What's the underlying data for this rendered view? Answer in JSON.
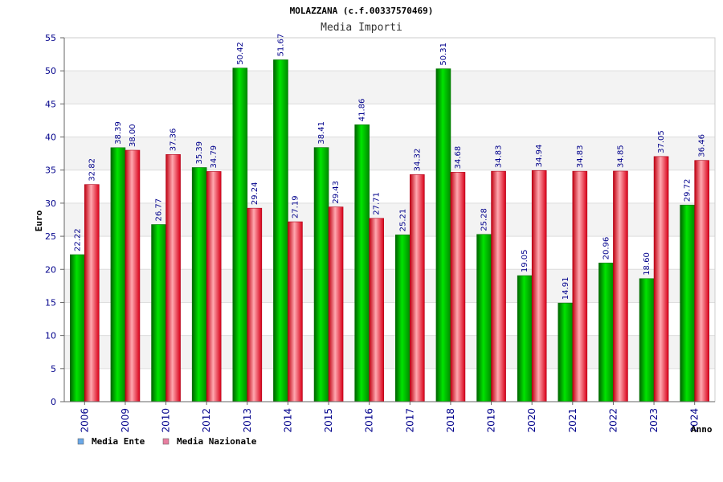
{
  "chart_data": {
    "type": "bar",
    "title": "MOLAZZANA (c.f.00337570469)",
    "subtitle": "Media Importi",
    "xlabel": "Anno",
    "ylabel": "Euro",
    "ylim": [
      0,
      55
    ],
    "yticks": [
      0,
      5,
      10,
      15,
      20,
      25,
      30,
      35,
      40,
      45,
      50,
      55
    ],
    "grid": true,
    "legend_position": "bottom-left",
    "categories": [
      "2006",
      "2009",
      "2010",
      "2012",
      "2013",
      "2014",
      "2015",
      "2016",
      "2017",
      "2018",
      "2019",
      "2020",
      "2021",
      "2022",
      "2023",
      "2024"
    ],
    "series": [
      {
        "name": "Media Ente",
        "color": "#00b000",
        "legend_color": "#6aa8e8",
        "values": [
          22.22,
          38.39,
          26.77,
          35.39,
          50.42,
          51.67,
          38.41,
          41.86,
          25.21,
          50.31,
          25.28,
          19.05,
          14.91,
          20.96,
          18.6,
          29.72
        ],
        "labels": [
          "22.22",
          "38.39",
          "26.77",
          "35.39",
          "50.42",
          "51.67",
          "38.41",
          "41.86",
          "25.21",
          "50.31",
          "25.28",
          "19.05",
          "14.91",
          "20.96",
          "18.60",
          "29.72"
        ]
      },
      {
        "name": "Media Nazionale",
        "color": "#e8202a",
        "legend_color": "#e87ea0",
        "values": [
          32.82,
          38.0,
          37.36,
          34.79,
          29.24,
          27.19,
          29.43,
          27.71,
          34.32,
          34.68,
          34.83,
          34.94,
          34.83,
          34.85,
          37.05,
          36.46
        ],
        "labels": [
          "32.82",
          "38.00",
          "37.36",
          "34.79",
          "29.24",
          "27.19",
          "29.43",
          "27.71",
          "34.32",
          "34.68",
          "34.83",
          "34.94",
          "34.83",
          "34.85",
          "37.05",
          "36.46"
        ]
      }
    ]
  }
}
